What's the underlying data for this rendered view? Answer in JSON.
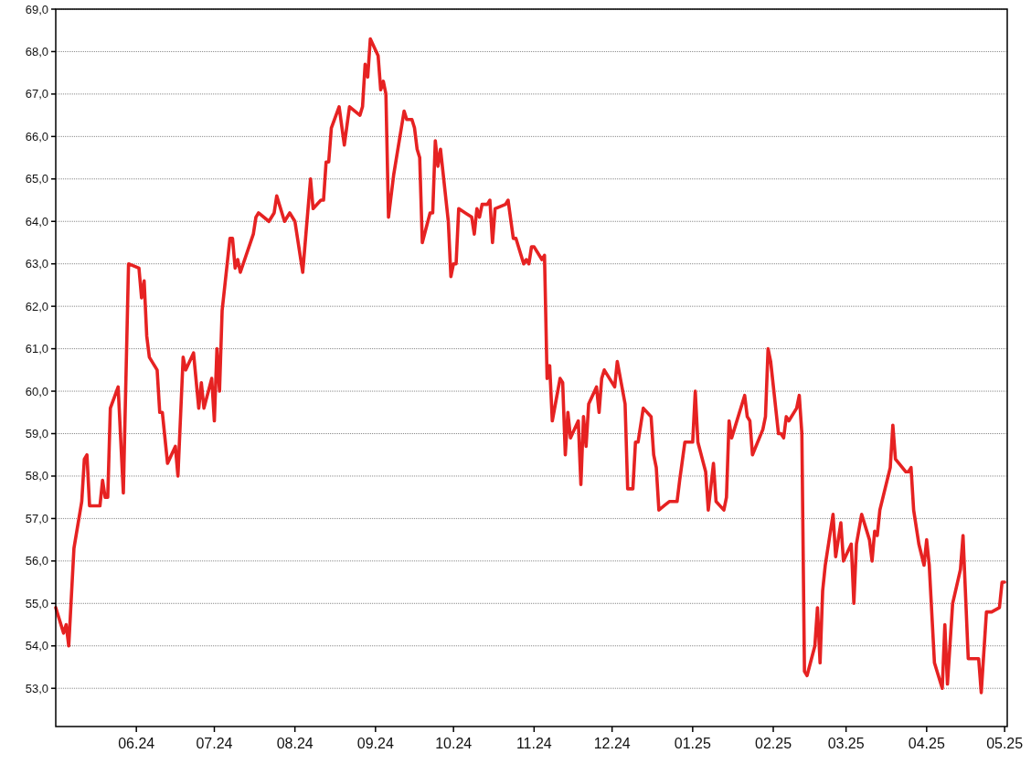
{
  "chart_data": {
    "type": "line",
    "xlim": [
      "2024-05-01",
      "2025-05-02"
    ],
    "ylim": [
      52.1,
      69
    ],
    "xticks": [
      {
        "value": "2024-06-01",
        "label": "06.24"
      },
      {
        "value": "2024-07-01",
        "label": "07.24"
      },
      {
        "value": "2024-08-01",
        "label": "08.24"
      },
      {
        "value": "2024-09-01",
        "label": "09.24"
      },
      {
        "value": "2024-10-01",
        "label": "10.24"
      },
      {
        "value": "2024-11-01",
        "label": "11.24"
      },
      {
        "value": "2024-12-01",
        "label": "12.24"
      },
      {
        "value": "2025-01-01",
        "label": "01.25"
      },
      {
        "value": "2025-02-01",
        "label": "02.25"
      },
      {
        "value": "2025-03-01",
        "label": "03.25"
      },
      {
        "value": "2025-04-01",
        "label": "04.25"
      },
      {
        "value": "2025-05-01",
        "label": "05.25"
      }
    ],
    "yticks": [
      {
        "value": 53,
        "label": "53,0"
      },
      {
        "value": 54,
        "label": "54,0"
      },
      {
        "value": 55,
        "label": "55,0"
      },
      {
        "value": 56,
        "label": "56,0"
      },
      {
        "value": 57,
        "label": "57,0"
      },
      {
        "value": 58,
        "label": "58,0"
      },
      {
        "value": 59,
        "label": "59,0"
      },
      {
        "value": 60,
        "label": "60,0"
      },
      {
        "value": 61,
        "label": "61,0"
      },
      {
        "value": 62,
        "label": "62,0"
      },
      {
        "value": 63,
        "label": "63,0"
      },
      {
        "value": 64,
        "label": "64,0"
      },
      {
        "value": 65,
        "label": "65,0"
      },
      {
        "value": 66,
        "label": "66,0"
      },
      {
        "value": 67,
        "label": "67,0"
      },
      {
        "value": 68,
        "label": "68,0"
      },
      {
        "value": 69,
        "label": "69,0"
      }
    ],
    "grid": "y",
    "marker": "none",
    "line_style": "solid",
    "series": [
      {
        "color": "#e62222",
        "x": [
          "2024-05-01",
          "2024-05-04",
          "2024-05-05",
          "2024-05-06",
          "2024-05-08",
          "2024-05-11",
          "2024-05-12",
          "2024-05-13",
          "2024-05-14",
          "2024-05-18",
          "2024-05-19",
          "2024-05-20",
          "2024-05-21",
          "2024-05-22",
          "2024-05-25",
          "2024-05-27",
          "2024-05-29",
          "2024-06-02",
          "2024-06-03",
          "2024-06-04",
          "2024-06-05",
          "2024-06-06",
          "2024-06-09",
          "2024-06-10",
          "2024-06-11",
          "2024-06-13",
          "2024-06-16",
          "2024-06-17",
          "2024-06-19",
          "2024-06-20",
          "2024-06-23",
          "2024-06-25",
          "2024-06-26",
          "2024-06-27",
          "2024-06-30",
          "2024-07-01",
          "2024-07-02",
          "2024-07-03",
          "2024-07-04",
          "2024-07-07",
          "2024-07-08",
          "2024-07-09",
          "2024-07-10",
          "2024-07-11",
          "2024-07-16",
          "2024-07-17",
          "2024-07-18",
          "2024-07-22",
          "2024-07-24",
          "2024-07-25",
          "2024-07-28",
          "2024-07-30",
          "2024-08-01",
          "2024-08-04",
          "2024-08-07",
          "2024-08-08",
          "2024-08-11",
          "2024-08-12",
          "2024-08-13",
          "2024-08-14",
          "2024-08-15",
          "2024-08-18",
          "2024-08-20",
          "2024-08-22",
          "2024-08-26",
          "2024-08-27",
          "2024-08-28",
          "2024-08-29",
          "2024-08-30",
          "2024-09-02",
          "2024-09-03",
          "2024-09-04",
          "2024-09-05",
          "2024-09-06",
          "2024-09-08",
          "2024-09-12",
          "2024-09-13",
          "2024-09-15",
          "2024-09-16",
          "2024-09-17",
          "2024-09-18",
          "2024-09-19",
          "2024-09-22",
          "2024-09-23",
          "2024-09-24",
          "2024-09-25",
          "2024-09-26",
          "2024-09-29",
          "2024-09-30",
          "2024-10-01",
          "2024-10-02",
          "2024-10-03",
          "2024-10-08",
          "2024-10-09",
          "2024-10-10",
          "2024-10-11",
          "2024-10-12",
          "2024-10-14",
          "2024-10-15",
          "2024-10-16",
          "2024-10-17",
          "2024-10-21",
          "2024-10-22",
          "2024-10-24",
          "2024-10-25",
          "2024-10-28",
          "2024-10-29",
          "2024-10-30",
          "2024-10-31",
          "2024-11-01",
          "2024-11-04",
          "2024-11-05",
          "2024-11-06",
          "2024-11-07",
          "2024-11-08",
          "2024-11-11",
          "2024-11-12",
          "2024-11-13",
          "2024-11-14",
          "2024-11-15",
          "2024-11-18",
          "2024-11-19",
          "2024-11-20",
          "2024-11-21",
          "2024-11-22",
          "2024-11-25",
          "2024-11-26",
          "2024-11-27",
          "2024-11-28",
          "2024-12-02",
          "2024-12-03",
          "2024-12-06",
          "2024-12-07",
          "2024-12-09",
          "2024-12-10",
          "2024-12-11",
          "2024-12-12",
          "2024-12-13",
          "2024-12-16",
          "2024-12-17",
          "2024-12-18",
          "2024-12-19",
          "2024-12-21",
          "2024-12-23",
          "2024-12-26",
          "2024-12-27",
          "2024-12-29",
          "2025-01-01",
          "2025-01-02",
          "2025-01-03",
          "2025-01-06",
          "2025-01-07",
          "2025-01-09",
          "2025-01-10",
          "2025-01-13",
          "2025-01-14",
          "2025-01-15",
          "2025-01-16",
          "2025-01-17",
          "2025-01-21",
          "2025-01-22",
          "2025-01-23",
          "2025-01-24",
          "2025-01-28",
          "2025-01-29",
          "2025-01-30",
          "2025-01-31",
          "2025-02-03",
          "2025-02-04",
          "2025-02-05",
          "2025-02-06",
          "2025-02-07",
          "2025-02-10",
          "2025-02-11",
          "2025-02-12",
          "2025-02-13",
          "2025-02-14",
          "2025-02-17",
          "2025-02-18",
          "2025-02-19",
          "2025-02-20",
          "2025-02-21",
          "2025-02-24",
          "2025-02-25",
          "2025-02-27",
          "2025-02-28",
          "2025-03-03",
          "2025-03-04",
          "2025-03-05",
          "2025-03-07",
          "2025-03-10",
          "2025-03-11",
          "2025-03-12",
          "2025-03-13",
          "2025-03-14",
          "2025-03-18",
          "2025-03-19",
          "2025-03-20",
          "2025-03-24",
          "2025-03-25",
          "2025-03-26",
          "2025-03-27",
          "2025-03-29",
          "2025-03-31",
          "2025-04-01",
          "2025-04-02",
          "2025-04-04",
          "2025-04-07",
          "2025-04-08",
          "2025-04-09",
          "2025-04-11",
          "2025-04-14",
          "2025-04-15",
          "2025-04-17",
          "2025-04-21",
          "2025-04-22",
          "2025-04-24",
          "2025-04-25",
          "2025-04-26",
          "2025-04-29",
          "2025-04-30",
          "2025-05-01"
        ],
        "values": [
          54.9,
          54.3,
          54.5,
          54.0,
          56.3,
          57.4,
          58.4,
          58.5,
          57.3,
          57.3,
          57.9,
          57.5,
          57.5,
          59.6,
          60.1,
          57.6,
          63.0,
          62.9,
          62.2,
          62.6,
          61.3,
          60.8,
          60.5,
          59.5,
          59.5,
          58.3,
          58.7,
          58.0,
          60.8,
          60.5,
          60.9,
          59.6,
          60.2,
          59.6,
          60.3,
          59.3,
          61.0,
          60.0,
          61.9,
          63.6,
          63.6,
          62.9,
          63.1,
          62.8,
          63.7,
          64.1,
          64.2,
          64.0,
          64.2,
          64.6,
          64.0,
          64.2,
          64.0,
          62.8,
          65.0,
          64.3,
          64.5,
          64.5,
          65.4,
          65.4,
          66.2,
          66.7,
          65.8,
          66.7,
          66.5,
          66.7,
          67.7,
          67.4,
          68.3,
          67.9,
          67.1,
          67.3,
          67.0,
          64.1,
          65.1,
          66.6,
          66.4,
          66.4,
          66.2,
          65.7,
          65.5,
          63.5,
          64.2,
          64.2,
          65.9,
          65.3,
          65.7,
          64.0,
          62.7,
          63.0,
          63.0,
          64.3,
          64.1,
          63.7,
          64.3,
          64.1,
          64.4,
          64.4,
          64.5,
          63.5,
          64.3,
          64.4,
          64.5,
          63.6,
          63.6,
          63.0,
          63.1,
          63.0,
          63.4,
          63.4,
          63.1,
          63.2,
          60.3,
          60.6,
          59.3,
          60.3,
          60.2,
          58.5,
          59.5,
          58.9,
          59.3,
          57.8,
          59.4,
          58.7,
          59.7,
          60.1,
          59.5,
          60.3,
          60.5,
          60.1,
          60.7,
          59.7,
          57.7,
          57.7,
          58.8,
          58.8,
          59.2,
          59.6,
          59.4,
          58.5,
          58.2,
          57.2,
          57.3,
          57.4,
          57.4,
          57.9,
          58.8,
          58.8,
          60.0,
          58.8,
          58.1,
          57.2,
          58.3,
          57.4,
          57.2,
          57.5,
          59.3,
          58.9,
          59.1,
          59.9,
          59.4,
          59.3,
          58.5,
          59.1,
          59.4,
          61.0,
          60.7,
          59.0,
          59.0,
          58.9,
          59.4,
          59.3,
          59.6,
          59.9,
          59.0,
          53.4,
          53.3,
          54.0,
          54.9,
          53.6,
          55.3,
          55.9,
          57.1,
          56.1,
          56.9,
          56.0,
          56.4,
          55.0,
          56.4,
          57.1,
          56.5,
          56.0,
          56.7,
          56.6,
          57.2,
          58.2,
          59.2,
          58.4,
          58.1,
          58.1,
          58.2,
          57.2,
          56.4,
          55.9,
          56.5,
          55.9,
          53.6,
          53.0,
          54.5,
          53.1,
          55.0,
          55.8,
          56.6,
          53.7,
          53.7,
          52.9,
          54.8,
          54.8,
          54.8,
          54.9,
          55.5,
          55.5
        ]
      }
    ]
  }
}
